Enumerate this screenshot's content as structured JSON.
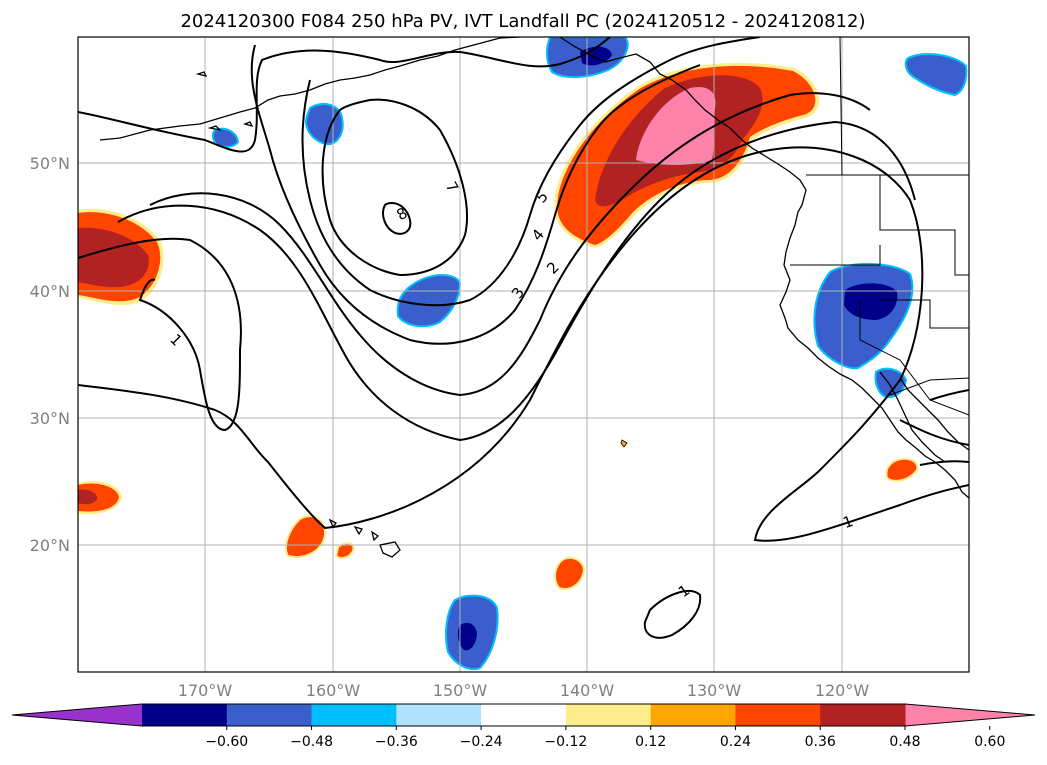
{
  "title": "2024120300 F084 250 hPa PV, IVT Landfall PC (2024120512 - 2024120812)",
  "lat_labels": [
    "50°N",
    "40°N",
    "30°N",
    "20°N"
  ],
  "lon_labels": [
    "170°W",
    "160°W",
    "150°W",
    "140°W",
    "130°W",
    "120°W"
  ],
  "contour_labels": [
    "8",
    "7",
    "5",
    "4",
    "3",
    "2",
    "1",
    "1",
    "1"
  ],
  "colorbar": {
    "tick_labels": [
      "−0.60",
      "−0.48",
      "−0.36",
      "−0.24",
      "−0.12",
      "0.12",
      "0.24",
      "0.36",
      "0.48",
      "0.60"
    ],
    "colors": [
      "#9932cc",
      "#00008b",
      "#3a5fcd",
      "#00bfff",
      "#b0e2ff",
      "#ffffff",
      "#ffec8b",
      "#ffa500",
      "#ff4500",
      "#b22222",
      "#ff82ab"
    ]
  },
  "map": {
    "lon_range": [
      -180,
      -110
    ],
    "lat_range": [
      10,
      60
    ],
    "gridlines": true,
    "projection": "PlateCarree",
    "fields": [
      "250 hPa PV (contours)",
      "IVT landfall PC (shaded)"
    ]
  }
}
